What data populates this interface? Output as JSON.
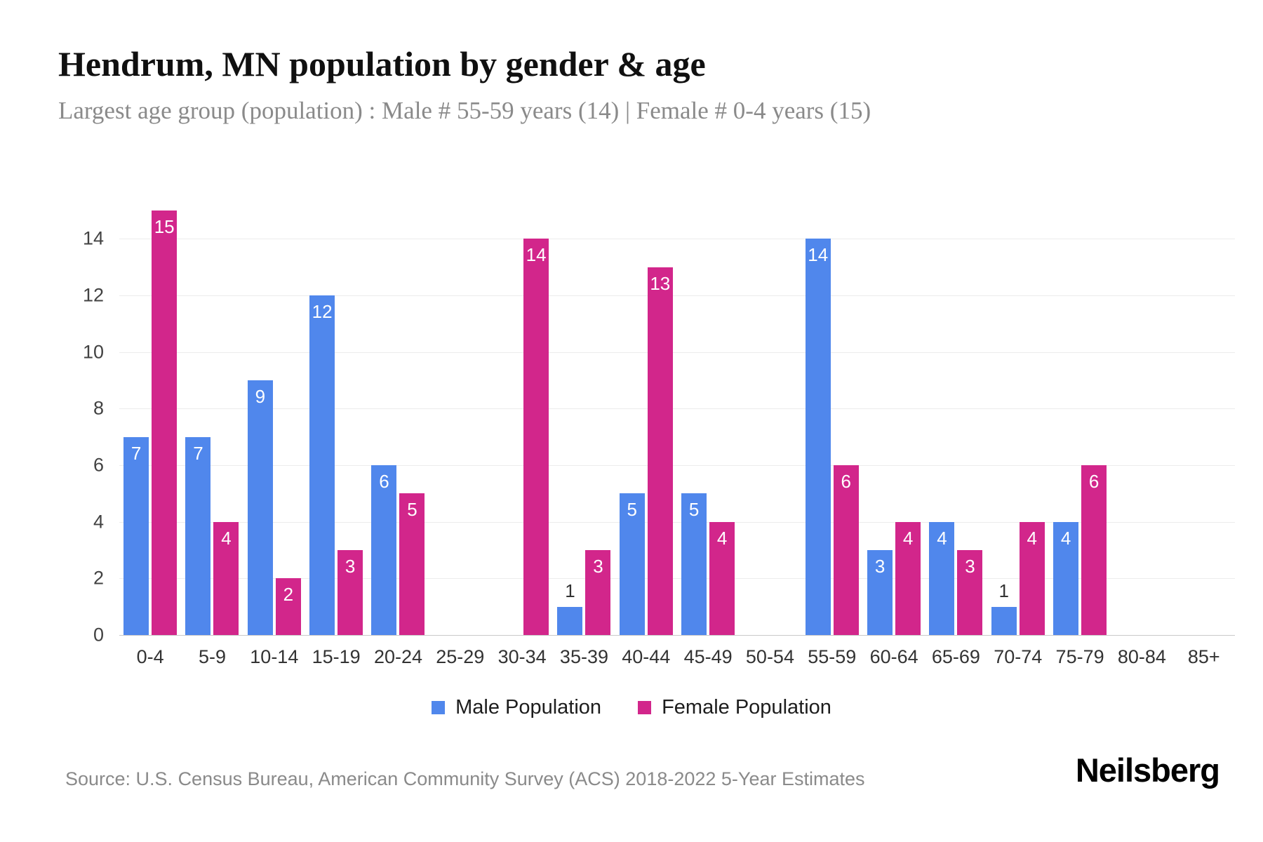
{
  "header": {
    "title": "Hendrum, MN population by gender & age",
    "subtitle": "Largest age group (population) : Male # 55-59 years (14) | Female # 0-4 years (15)"
  },
  "chart_data": {
    "type": "bar",
    "title": "Hendrum, MN population by gender & age",
    "categories": [
      "0-4",
      "5-9",
      "10-14",
      "15-19",
      "20-24",
      "25-29",
      "30-34",
      "35-39",
      "40-44",
      "45-49",
      "50-54",
      "55-59",
      "60-64",
      "65-69",
      "70-74",
      "75-79",
      "80-84",
      "85+"
    ],
    "series": [
      {
        "name": "Male Population",
        "color": "#5087ec",
        "values": [
          7,
          7,
          9,
          12,
          6,
          0,
          0,
          1,
          5,
          5,
          0,
          14,
          3,
          4,
          1,
          4,
          0,
          0
        ]
      },
      {
        "name": "Female Population",
        "color": "#d2268b",
        "values": [
          15,
          4,
          2,
          3,
          5,
          0,
          14,
          3,
          13,
          4,
          0,
          6,
          4,
          3,
          4,
          6,
          0,
          0
        ]
      }
    ],
    "xlabel": "",
    "ylabel": "",
    "ylim": [
      0,
      15
    ],
    "yticks": [
      0,
      2,
      4,
      6,
      8,
      10,
      12,
      14
    ],
    "grid": true,
    "legend_position": "bottom"
  },
  "footer": {
    "source": "Source: U.S. Census Bureau, American Community Survey (ACS) 2018-2022 5-Year Estimates",
    "brand": "Neilsberg"
  }
}
